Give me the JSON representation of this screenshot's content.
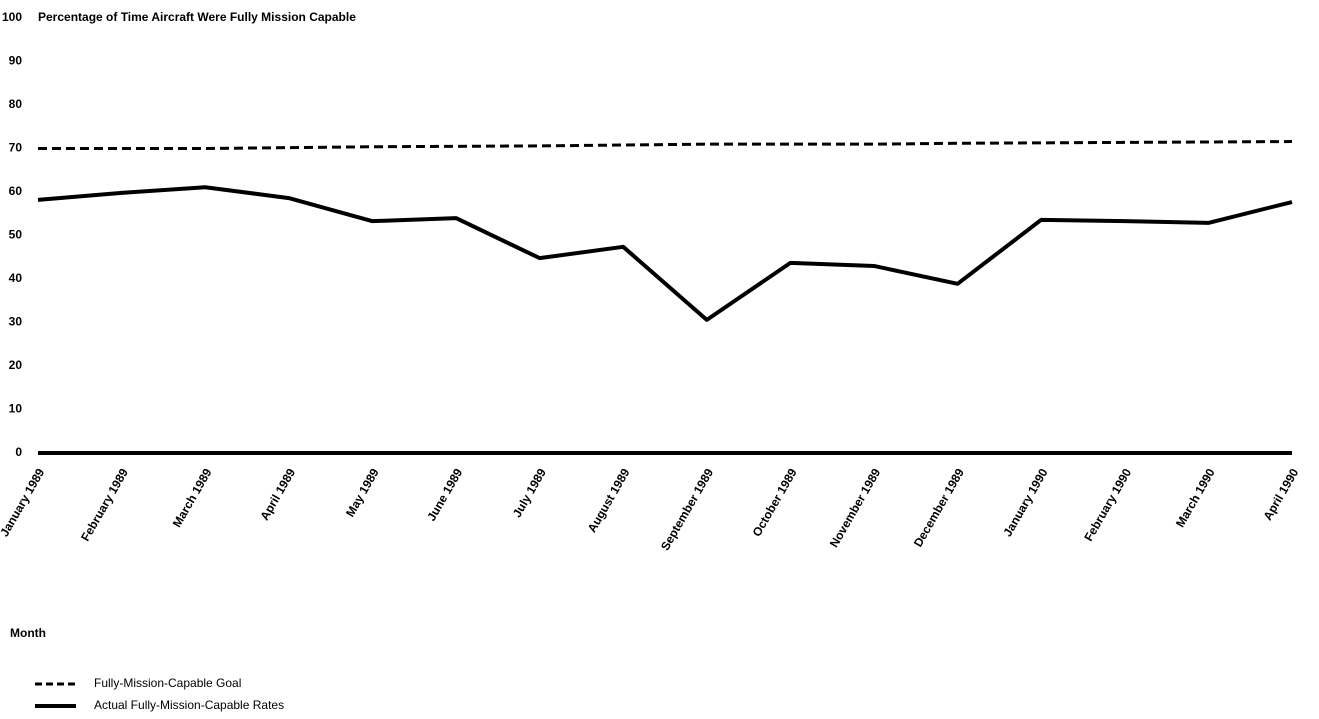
{
  "chart_data": {
    "type": "line",
    "title": "Percentage of Time Aircraft Were Fully Mission Capable",
    "xlabel": "Month",
    "categories": [
      "January 1989",
      "February 1989",
      "March 1989",
      "April 1989",
      "May 1989",
      "June 1989",
      "July 1989",
      "August 1989",
      "September 1989",
      "October 1989",
      "November 1989",
      "December 1989",
      "January 1990",
      "February 1990",
      "March 1990",
      "April 1990"
    ],
    "series": [
      {
        "name": "Fully-Mission-Capable Goal",
        "color": "#000000",
        "line_style": "dashed",
        "values": [
          70,
          70,
          70,
          70.2,
          70.4,
          70.5,
          70.6,
          70.8,
          71,
          71,
          71,
          71.2,
          71.3,
          71.4,
          71.5,
          71.6
        ]
      },
      {
        "name": "Actual Fully-Mission-Capable Rates",
        "color": "#000000",
        "line_style": "solid",
        "values": [
          58.2,
          59.8,
          61.1,
          58.6,
          53.3,
          54,
          44.8,
          47.4,
          30.6,
          43.7,
          43,
          38.9,
          53.6,
          53.3,
          52.9,
          57.7
        ]
      }
    ],
    "ylim": [
      0,
      100
    ],
    "yticks": [
      0,
      10,
      20,
      30,
      40,
      50,
      60,
      70,
      80,
      90,
      100
    ],
    "grid": false
  }
}
